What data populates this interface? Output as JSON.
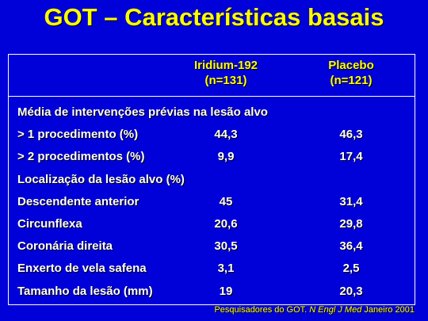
{
  "title": "GOT – Características basais",
  "table": {
    "header": [
      [
        "Iridium-192",
        "(n=131)"
      ],
      [
        "Placebo",
        "(n=121)"
      ]
    ],
    "rows": [
      [
        "Média de intervenções prévias na lesão alvo"
      ],
      [
        "> 1 procedimento (%)",
        "44,3",
        "46,3"
      ],
      [
        "> 2 procedimentos (%)",
        "9,9",
        "17,4"
      ],
      [
        "Localização da lesão alvo (%)"
      ],
      [
        "Descendente anterior",
        "45",
        "31,4"
      ],
      [
        "Circunflexa",
        "20,6",
        "29,8"
      ],
      [
        "Coronária direita",
        "30,5",
        "36,4"
      ],
      [
        "Enxerto de vela safena",
        "3,1",
        "2,5"
      ],
      [
        "Tamanho da lesão (mm)",
        "19",
        "20,3"
      ]
    ]
  },
  "footer": {
    "authors": "Pesquisadores do GOT.",
    "journal": "N Engl J Med",
    "date": "Janeiro 2001"
  }
}
